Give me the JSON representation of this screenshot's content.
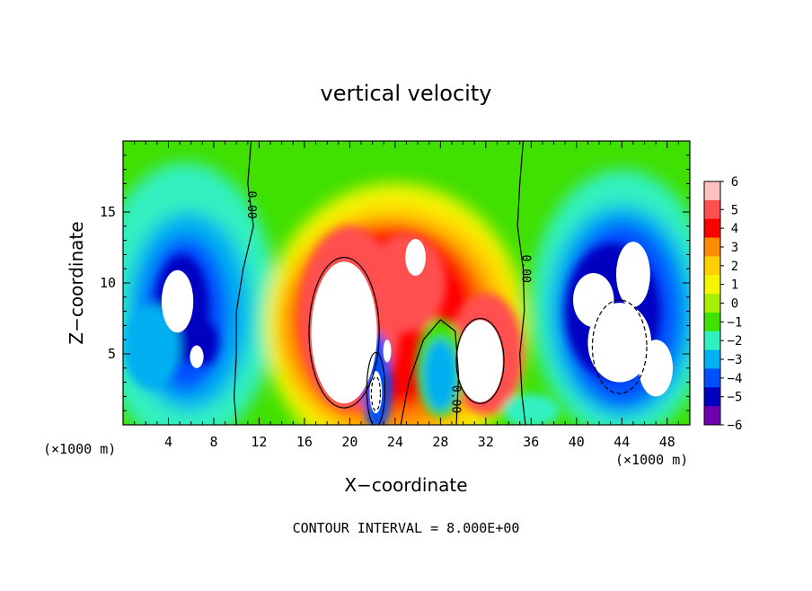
{
  "chart_data": {
    "type": "heatmap",
    "title": "vertical velocity",
    "xlabel": "X−coordinate",
    "ylabel": "Z−coordinate",
    "x_unit_label": "(×1000 m)",
    "x_unit_label_right": "(×1000 m)",
    "footer": "CONTOUR INTERVAL = 8.000E+00",
    "xlim": [
      0,
      50
    ],
    "ylim": [
      0,
      20
    ],
    "x_ticks": [
      4,
      8,
      12,
      16,
      20,
      24,
      28,
      32,
      36,
      40,
      44,
      48
    ],
    "y_ticks": [
      5,
      10,
      15
    ],
    "contour_labels": [
      "0.00",
      "0.00",
      "0.00"
    ],
    "colorbar": {
      "ticks": [
        6,
        5,
        4,
        3,
        2,
        1,
        0,
        -1,
        -2,
        -3,
        -4,
        -5,
        -6
      ],
      "tick_labels": [
        "6",
        "5",
        "4",
        "3",
        "2",
        "1",
        "0",
        "−1",
        "−2",
        "−3",
        "−4",
        "−5",
        "−6"
      ],
      "colors": [
        "#ffc0c0",
        "#ff5050",
        "#ff0000",
        "#ff8c00",
        "#ffd000",
        "#f5f500",
        "#a8f000",
        "#40e000",
        "#30f0c0",
        "#00b0f0",
        "#0050ff",
        "#0000c0",
        "#7000b0"
      ]
    },
    "features": [
      {
        "kind": "updraft_core",
        "x": 19.5,
        "z": 6.5,
        "value": 8
      },
      {
        "kind": "updraft_core",
        "x": 31.5,
        "z": 4.5,
        "value": 8
      },
      {
        "kind": "updraft_core",
        "x": 22.3,
        "z": 2.3,
        "value": 8
      },
      {
        "kind": "updraft_core",
        "x": 25.8,
        "z": 11.8,
        "value": 8
      },
      {
        "kind": "downdraft_core",
        "x": 5.2,
        "z": 8.5,
        "value": -8
      },
      {
        "kind": "downdraft_core",
        "x": 43.5,
        "z": 7.0,
        "value": -8
      }
    ],
    "grid": false
  }
}
